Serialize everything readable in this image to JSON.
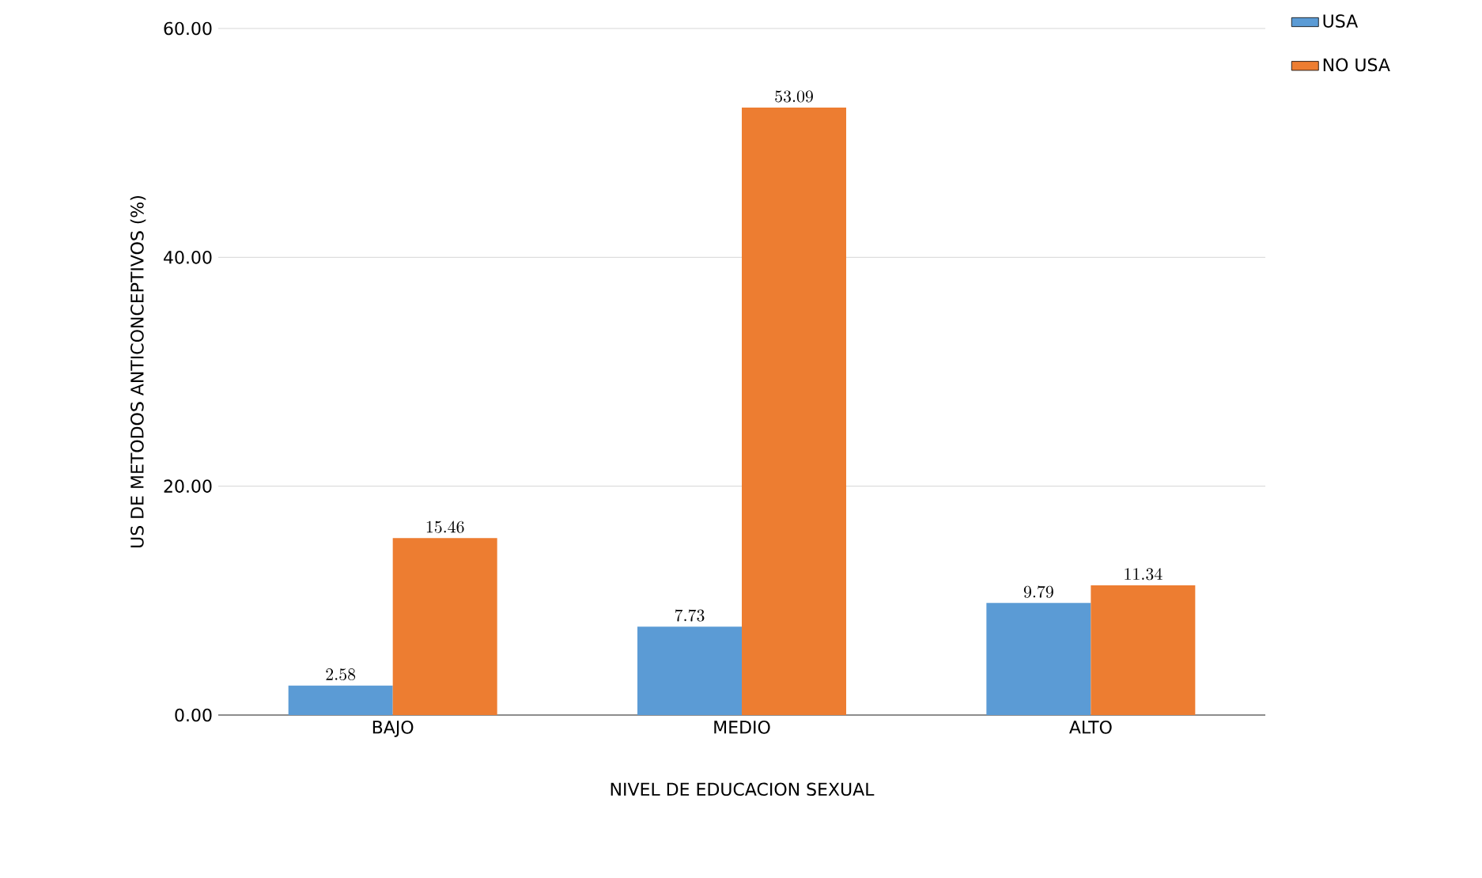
{
  "chart_data": {
    "type": "bar",
    "xlabel": "NIVEL DE EDUCACION SEXUAL",
    "ylabel": "US DE METODOS ANTICONCEPTIVOS (%)",
    "categories": [
      "BAJO",
      "MEDIO",
      "ALTO"
    ],
    "series": [
      {
        "name": "USA",
        "color": "#5b9bd5",
        "values": [
          2.58,
          7.73,
          9.79
        ]
      },
      {
        "name": "NO USA",
        "color": "#ed7d31",
        "values": [
          15.46,
          53.09,
          11.34
        ]
      }
    ],
    "ylim": [
      0,
      60
    ],
    "yticks": [
      {
        "value": 0,
        "label": "0.00"
      },
      {
        "value": 20,
        "label": "20.00"
      },
      {
        "value": 40,
        "label": "40.00"
      },
      {
        "value": 60,
        "label": "60.00"
      }
    ],
    "grid": "y",
    "legend": "top right",
    "data_labels": true
  }
}
